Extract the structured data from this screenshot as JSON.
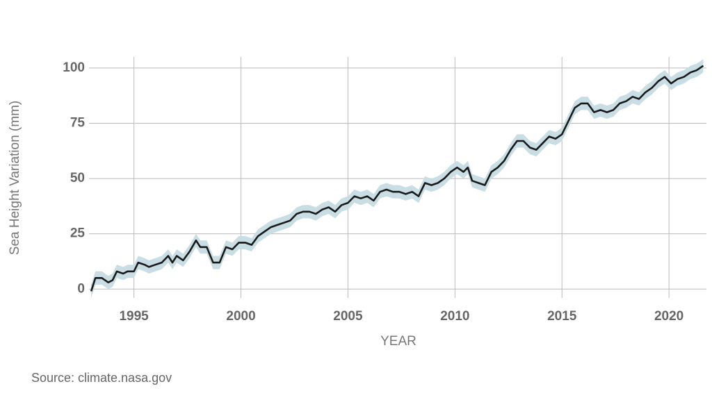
{
  "chart_data": {
    "type": "line",
    "y_label": "Sea Height Variation (mm)",
    "x_label": "YEAR",
    "source": "Source: climate.nasa.gov",
    "xlim": [
      1992.9,
      2021.75
    ],
    "ylim": [
      -4,
      105
    ],
    "xticks": [
      1995,
      2000,
      2005,
      2010,
      2015,
      2020
    ],
    "yticks": [
      0,
      25,
      50,
      75,
      100
    ],
    "grid": true,
    "series": [
      {
        "color": "#1a1a1a",
        "band_color": "#c9dde4",
        "error": 3,
        "x": [
          1993.0,
          1993.2,
          1993.5,
          1993.8,
          1994.0,
          1994.2,
          1994.5,
          1994.7,
          1995.0,
          1995.2,
          1995.5,
          1995.7,
          1996.0,
          1996.3,
          1996.6,
          1996.8,
          1997.0,
          1997.3,
          1997.6,
          1997.9,
          1998.1,
          1998.4,
          1998.7,
          1999.0,
          1999.3,
          1999.6,
          1999.9,
          2000.2,
          2000.5,
          2000.8,
          2001.1,
          2001.4,
          2001.7,
          2002.0,
          2002.3,
          2002.6,
          2002.9,
          2003.2,
          2003.5,
          2003.8,
          2004.1,
          2004.4,
          2004.7,
          2005.0,
          2005.3,
          2005.6,
          2005.9,
          2006.2,
          2006.5,
          2006.8,
          2007.1,
          2007.4,
          2007.7,
          2008.0,
          2008.3,
          2008.6,
          2008.9,
          2009.2,
          2009.5,
          2009.8,
          2010.1,
          2010.4,
          2010.6,
          2010.8,
          2011.1,
          2011.4,
          2011.7,
          2012.0,
          2012.3,
          2012.6,
          2012.9,
          2013.2,
          2013.5,
          2013.8,
          2014.1,
          2014.4,
          2014.7,
          2015.0,
          2015.3,
          2015.6,
          2015.9,
          2016.2,
          2016.5,
          2016.8,
          2017.1,
          2017.4,
          2017.7,
          2018.0,
          2018.3,
          2018.6,
          2018.9,
          2019.2,
          2019.5,
          2019.8,
          2020.1,
          2020.4,
          2020.7,
          2021.0,
          2021.3,
          2021.6
        ],
        "values": [
          -1,
          5,
          5,
          3,
          4,
          8,
          7,
          8,
          8,
          12,
          11,
          10,
          11,
          12,
          15,
          12,
          15,
          13,
          17,
          22,
          19,
          19,
          12,
          12,
          19,
          18,
          21,
          21,
          20,
          24,
          26,
          28,
          29,
          30,
          31,
          34,
          35,
          35,
          34,
          36,
          37,
          35,
          38,
          39,
          42,
          41,
          42,
          40,
          44,
          45,
          44,
          44,
          43,
          44,
          42,
          48,
          47,
          48,
          50,
          53,
          55,
          53,
          55,
          49,
          48,
          47,
          53,
          55,
          58,
          63,
          67,
          67,
          64,
          63,
          66,
          69,
          68,
          70,
          76,
          82,
          84,
          84,
          80,
          81,
          80,
          81,
          84,
          85,
          87,
          86,
          89,
          91,
          94,
          96,
          93,
          95,
          96,
          98,
          99,
          101
        ]
      }
    ]
  }
}
